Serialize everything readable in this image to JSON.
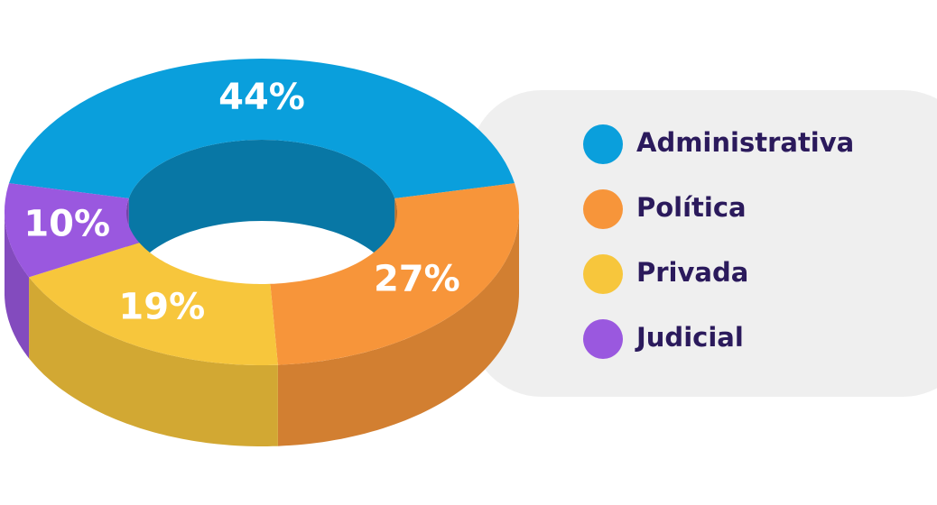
{
  "chart_data": {
    "type": "pie",
    "categories": [
      "Administrativa",
      "Política",
      "Privada",
      "Judicial"
    ],
    "values": [
      44,
      27,
      19,
      10
    ],
    "value_labels": [
      "44%",
      "27%",
      "19%",
      "10%"
    ],
    "colors": [
      "#0a9fdc",
      "#f7953a",
      "#f7c63c",
      "#9a58df"
    ]
  }
}
